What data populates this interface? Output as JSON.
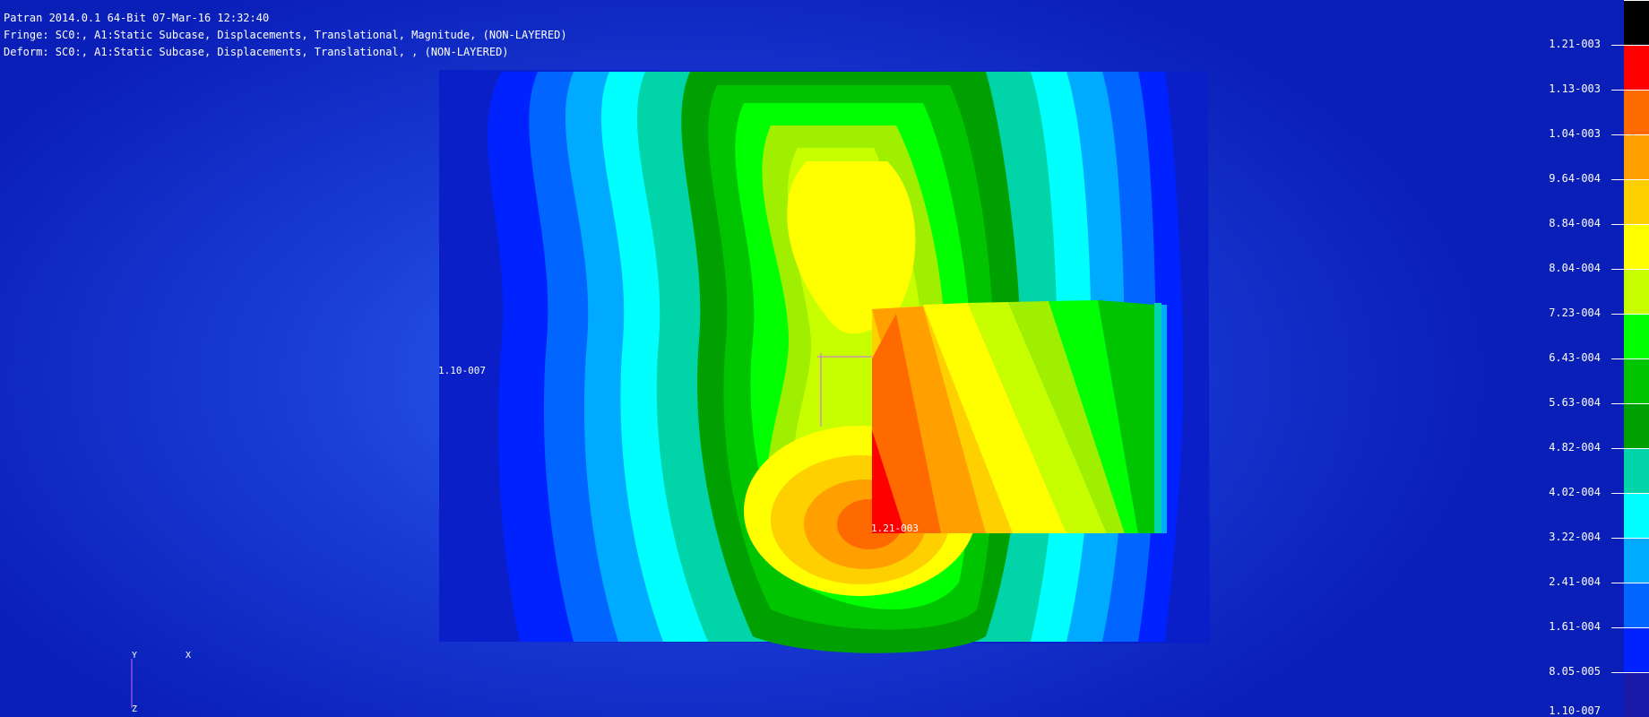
{
  "header": {
    "line1": "Patran 2014.0.1 64-Bit 07-Mar-16 12:32:40",
    "line2": "Fringe: SC0:, A1:Static Subcase, Displacements, Translational, Magnitude, (NON-LAYERED)",
    "line3": "Deform: SC0:, A1:Static Subcase, Displacements, Translational, , (NON-LAYERED)"
  },
  "model_labels": {
    "min_value": "1.10-007",
    "max_value": "1.21-003"
  },
  "axis_triad": {
    "y": "Y",
    "x": "X",
    "z": "Z"
  },
  "legend": {
    "labels": [
      "1.21-003",
      "1.13-003",
      "1.04-003",
      "9.64-004",
      "8.84-004",
      "8.04-004",
      "7.23-004",
      "6.43-004",
      "5.63-004",
      "4.82-004",
      "4.02-004",
      "3.22-004",
      "2.41-004",
      "1.61-004",
      "8.05-005",
      "1.10-007"
    ],
    "colors": [
      "#ff0000",
      "#ff6a00",
      "#ffa000",
      "#ffd000",
      "#ffff00",
      "#c8ff00",
      "#a0ee00",
      "#00ff00",
      "#00c400",
      "#00a000",
      "#00d4a8",
      "#00ffff",
      "#00aaff",
      "#0066ff",
      "#0022ff"
    ],
    "top_color": "#000000"
  },
  "colors": {
    "background": "#1a3fd8",
    "mesh_base": "#0a1fc8",
    "text": "#ffffff"
  }
}
